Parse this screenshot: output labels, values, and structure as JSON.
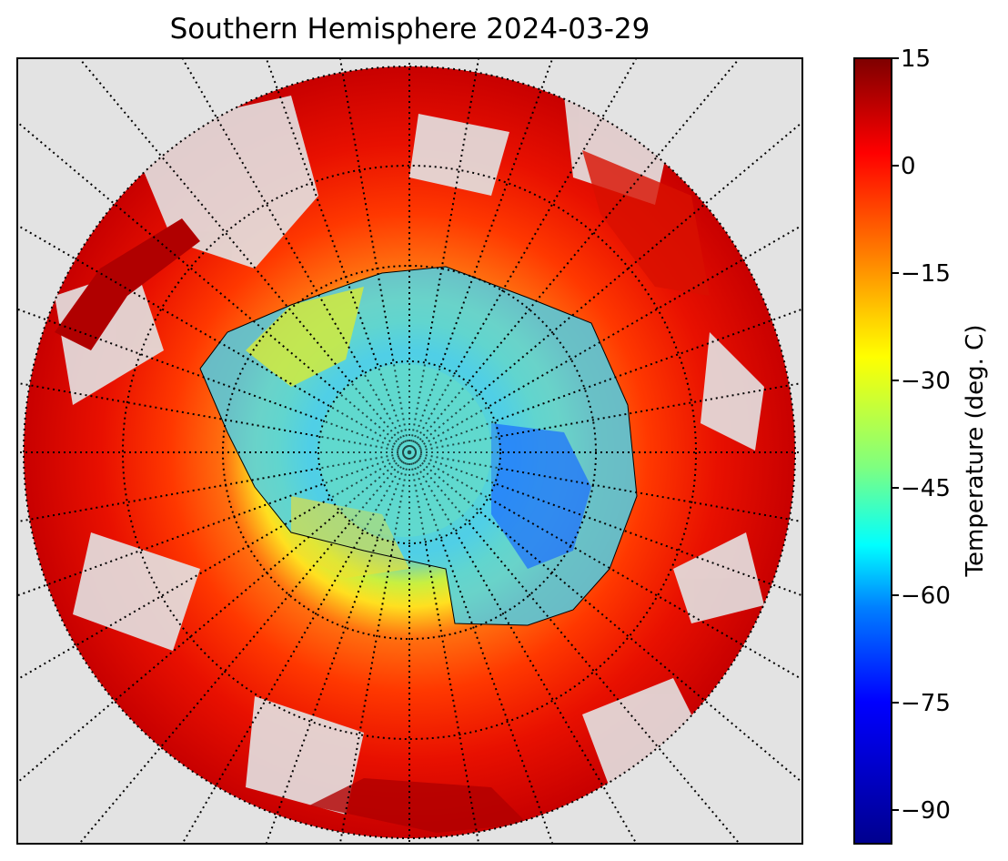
{
  "title": "Southern Hemisphere 2024-03-29",
  "colorbar": {
    "label": "Temperature (deg. C)",
    "ticks": [
      "15",
      "0",
      "−15",
      "−30",
      "−45",
      "−60",
      "−75",
      "−90"
    ],
    "colormap": "jet",
    "range": [
      -95,
      15
    ]
  },
  "map": {
    "projection": "south polar stereographic",
    "background_color": "#e3e3e3",
    "graticule_style": "dotted black",
    "coastline_color": "#000000"
  }
}
